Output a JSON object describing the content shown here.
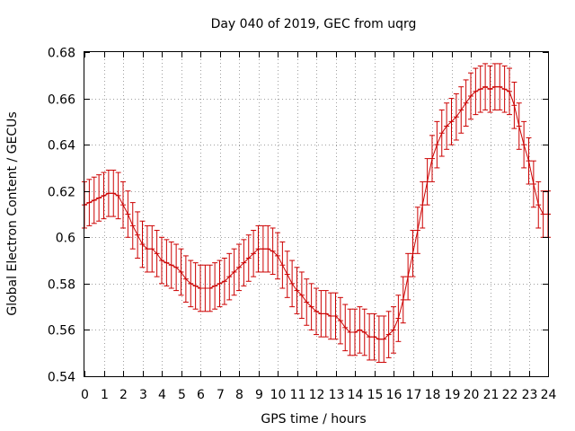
{
  "chart_data": {
    "type": "line",
    "title": "Day 040 of 2019, GEC from uqrg",
    "xlabel": "GPS time / hours",
    "ylabel": "Global Electron Content / GECUs",
    "xlim": [
      0,
      24
    ],
    "ylim": [
      0.54,
      0.68
    ],
    "xticks": [
      0,
      1,
      2,
      3,
      4,
      5,
      6,
      7,
      8,
      9,
      10,
      11,
      12,
      13,
      14,
      15,
      16,
      17,
      18,
      19,
      20,
      21,
      22,
      23,
      24
    ],
    "yticks": [
      "0.54",
      "0.56",
      "0.58",
      "0.6",
      "0.62",
      "0.64",
      "0.66",
      "0.68"
    ],
    "grid": true,
    "legend": "none",
    "series": [
      {
        "name": "GEC",
        "color": "#cc0000",
        "error_bar": 0.01,
        "x": [
          0,
          0.25,
          0.5,
          0.75,
          1,
          1.25,
          1.5,
          1.75,
          2,
          2.25,
          2.5,
          2.75,
          3,
          3.25,
          3.5,
          3.75,
          4,
          4.25,
          4.5,
          4.75,
          5,
          5.25,
          5.5,
          5.75,
          6,
          6.25,
          6.5,
          6.75,
          7,
          7.25,
          7.5,
          7.75,
          8,
          8.25,
          8.5,
          8.75,
          9,
          9.25,
          9.5,
          9.75,
          10,
          10.25,
          10.5,
          10.75,
          11,
          11.25,
          11.5,
          11.75,
          12,
          12.25,
          12.5,
          12.75,
          13,
          13.25,
          13.5,
          13.75,
          14,
          14.25,
          14.5,
          14.75,
          15,
          15.25,
          15.5,
          15.75,
          16,
          16.25,
          16.5,
          16.75,
          17,
          17.25,
          17.5,
          17.75,
          18,
          18.25,
          18.5,
          18.75,
          19,
          19.25,
          19.5,
          19.75,
          20,
          20.25,
          20.5,
          20.75,
          21,
          21.25,
          21.5,
          21.75,
          22,
          22.25,
          22.5,
          22.75,
          23,
          23.25,
          23.5,
          23.75,
          24
        ],
        "y": [
          0.614,
          0.615,
          0.616,
          0.617,
          0.618,
          0.619,
          0.619,
          0.618,
          0.614,
          0.61,
          0.605,
          0.601,
          0.597,
          0.595,
          0.595,
          0.593,
          0.59,
          0.589,
          0.588,
          0.587,
          0.585,
          0.582,
          0.58,
          0.579,
          0.578,
          0.578,
          0.578,
          0.579,
          0.58,
          0.581,
          0.583,
          0.585,
          0.587,
          0.589,
          0.591,
          0.593,
          0.595,
          0.595,
          0.595,
          0.594,
          0.592,
          0.588,
          0.584,
          0.58,
          0.577,
          0.575,
          0.572,
          0.57,
          0.568,
          0.567,
          0.567,
          0.566,
          0.566,
          0.564,
          0.561,
          0.559,
          0.559,
          0.56,
          0.559,
          0.557,
          0.557,
          0.556,
          0.556,
          0.558,
          0.56,
          0.565,
          0.573,
          0.583,
          0.593,
          0.603,
          0.614,
          0.624,
          0.634,
          0.64,
          0.645,
          0.648,
          0.65,
          0.652,
          0.655,
          0.658,
          0.661,
          0.663,
          0.664,
          0.665,
          0.664,
          0.665,
          0.665,
          0.664,
          0.663,
          0.657,
          0.648,
          0.64,
          0.633,
          0.623,
          0.614,
          0.61,
          0.61
        ]
      }
    ]
  }
}
